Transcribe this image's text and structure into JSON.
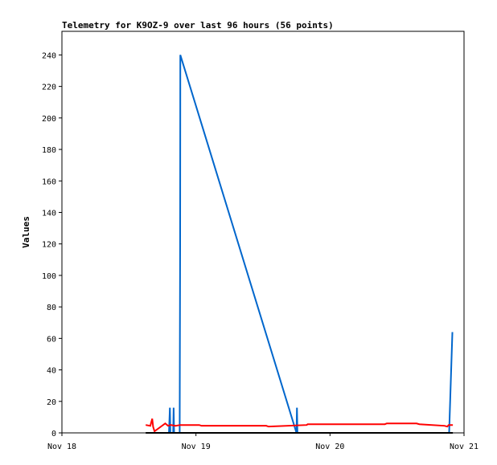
{
  "chart_data": {
    "type": "line",
    "title": "Telemetry for K9OZ-9 over last 96 hours (56 points)",
    "xlabel": "",
    "ylabel": "Values",
    "ylim": [
      0,
      255
    ],
    "yticks": [
      0,
      20,
      40,
      60,
      80,
      100,
      120,
      140,
      160,
      180,
      200,
      220,
      240
    ],
    "xlim": [
      "2023-11-18T00:00",
      "2023-11-21T00:00"
    ],
    "xticks": [
      {
        "label": "Nov 18",
        "x": "2023-11-18T00:00"
      },
      {
        "label": "Nov 19",
        "x": "2023-11-19T00:00"
      },
      {
        "label": "Nov 20",
        "x": "2023-11-20T00:00"
      },
      {
        "label": "Nov 21",
        "x": "2023-11-21T00:00"
      }
    ],
    "grid": false,
    "series": [
      {
        "color": "#0066cc",
        "points": [
          [
            "2023-11-18T15:05",
            0
          ],
          [
            "2023-11-18T19:10",
            0
          ],
          [
            "2023-11-18T19:20",
            16
          ],
          [
            "2023-11-18T19:25",
            0
          ],
          [
            "2023-11-18T19:55",
            0
          ],
          [
            "2023-11-18T20:00",
            16
          ],
          [
            "2023-11-18T20:05",
            0
          ],
          [
            "2023-11-18T21:05",
            0
          ],
          [
            "2023-11-18T21:10",
            120
          ],
          [
            "2023-11-18T21:12",
            240
          ],
          [
            "2023-11-19T18:00",
            0
          ],
          [
            "2023-11-19T18:05",
            16
          ],
          [
            "2023-11-19T18:10",
            0
          ],
          [
            "2023-11-20T21:20",
            0
          ],
          [
            "2023-11-20T21:55",
            64
          ]
        ]
      },
      {
        "color": "#ff0000",
        "points": [
          [
            "2023-11-18T15:00",
            5
          ],
          [
            "2023-11-18T15:50",
            4.5
          ],
          [
            "2023-11-18T16:10",
            9
          ],
          [
            "2023-11-18T16:20",
            3.8
          ],
          [
            "2023-11-18T16:35",
            1
          ],
          [
            "2023-11-18T18:30",
            6
          ],
          [
            "2023-11-18T19:00",
            4.5
          ],
          [
            "2023-11-18T19:30",
            5
          ],
          [
            "2023-11-18T20:20",
            4.5
          ],
          [
            "2023-11-18T21:10",
            5
          ],
          [
            "2023-11-19T00:35",
            5
          ],
          [
            "2023-11-19T01:00",
            4.5
          ],
          [
            "2023-11-19T12:35",
            4.5
          ],
          [
            "2023-11-19T13:00",
            4
          ],
          [
            "2023-11-19T19:50",
            5
          ],
          [
            "2023-11-19T20:00",
            5.5
          ],
          [
            "2023-11-20T09:50",
            5.5
          ],
          [
            "2023-11-20T10:10",
            6
          ],
          [
            "2023-11-20T15:30",
            6
          ],
          [
            "2023-11-20T16:00",
            5.5
          ],
          [
            "2023-11-20T20:30",
            4.5
          ],
          [
            "2023-11-20T21:00",
            4
          ],
          [
            "2023-11-20T21:15",
            5
          ],
          [
            "2023-11-20T22:00",
            5
          ]
        ]
      },
      {
        "color": "#000000",
        "points": [
          [
            "2023-11-18T15:00",
            0
          ],
          [
            "2023-11-20T22:00",
            0
          ]
        ]
      }
    ]
  }
}
